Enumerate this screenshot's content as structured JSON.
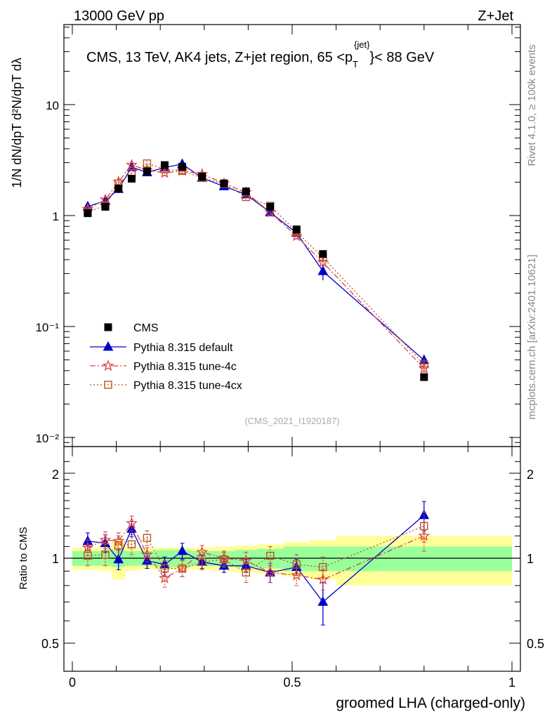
{
  "header": {
    "left": "13000 GeV pp",
    "right": "Z+Jet"
  },
  "side_text": {
    "rivet": "Rivet 4.1.0, ≥ 100k events",
    "mcplots": "mcplots.cern.ch [arXiv:2401.10621]"
  },
  "main_panel": {
    "title": "CMS, 13 TeV, AK4 jets, Z+jet region, 65 <p",
    "title_sup": "{jet}",
    "title_sub": "T",
    "title_end": "}< 88 GeV",
    "watermark": "(CMS_2021_I1920187)",
    "ylabel": "1/N dN/dpT d²N/dpT dλ",
    "ytick_labels": [
      "10⁻²",
      "10⁻¹",
      "1",
      "10"
    ]
  },
  "ratio_panel": {
    "ylabel": "Ratio to CMS",
    "ytick_labels": [
      "0.5",
      "1",
      "2"
    ],
    "ytick_labels_right": [
      "0.5",
      "1",
      "2"
    ]
  },
  "x_axis": {
    "label": "groomed LHA (charged-only)",
    "tick_labels": [
      "0",
      "0.5",
      "1"
    ]
  },
  "legend": [
    {
      "label": "CMS",
      "color": "#000000",
      "marker": "square-filled"
    },
    {
      "label": "Pythia 8.315 default",
      "color": "#0000cc",
      "marker": "triangle-filled"
    },
    {
      "label": "Pythia 8.315 tune-4c",
      "color": "#dd4444",
      "marker": "star"
    },
    {
      "label": "Pythia 8.315 tune-4cx",
      "color": "#bb5522",
      "marker": "square-open"
    }
  ],
  "colors": {
    "band_inner": "#99ff99",
    "band_outer": "#ffff99",
    "default": "#0000cc",
    "tune4c": "#dd4444",
    "tune4cx": "#bb5522"
  },
  "chart_data": {
    "type": "scatter",
    "xlim": [
      0,
      1
    ],
    "main_ylim": [
      0.008,
      60
    ],
    "main_yscale": "log",
    "ratio_ylim": [
      0.4,
      2.4
    ],
    "ratio_yscale": "log",
    "x": [
      0.035,
      0.075,
      0.105,
      0.135,
      0.17,
      0.21,
      0.25,
      0.295,
      0.345,
      0.395,
      0.45,
      0.51,
      0.57,
      0.8
    ],
    "x_low": [
      0.0,
      0.06,
      0.09,
      0.12,
      0.15,
      0.19,
      0.23,
      0.27,
      0.32,
      0.37,
      0.42,
      0.48,
      0.54,
      0.6
    ],
    "x_high": [
      0.06,
      0.09,
      0.12,
      0.15,
      0.19,
      0.23,
      0.27,
      0.32,
      0.37,
      0.42,
      0.48,
      0.54,
      0.6,
      1.0
    ],
    "cms": [
      1.05,
      1.2,
      1.75,
      2.15,
      2.5,
      2.85,
      2.75,
      2.25,
      1.95,
      1.65,
      1.2,
      0.75,
      0.45,
      0.035
    ],
    "band_inner": [
      0.06,
      0.06,
      0.07,
      0.06,
      0.06,
      0.07,
      0.07,
      0.06,
      0.06,
      0.07,
      0.08,
      0.1,
      0.1,
      0.1
    ],
    "band_outer": [
      0.09,
      0.1,
      0.16,
      0.1,
      0.09,
      0.09,
      0.09,
      0.09,
      0.1,
      0.11,
      0.12,
      0.14,
      0.16,
      0.2
    ],
    "series": [
      {
        "name": "Pythia 8.315 default",
        "key": "default",
        "ratio": [
          1.15,
          1.13,
          0.99,
          1.27,
          0.98,
          0.95,
          1.06,
          0.97,
          0.94,
          0.94,
          0.89,
          0.93,
          0.7,
          1.42
        ],
        "ratio_err": [
          0.08,
          0.08,
          0.08,
          0.08,
          0.06,
          0.06,
          0.07,
          0.05,
          0.05,
          0.05,
          0.07,
          0.06,
          0.12,
          0.17
        ]
      },
      {
        "name": "Pythia 8.315 tune-4c",
        "key": "tune4c",
        "ratio": [
          1.09,
          1.16,
          1.15,
          1.33,
          1.03,
          0.85,
          0.92,
          1.05,
          1.0,
          0.98,
          0.89,
          0.87,
          0.84,
          1.2
        ],
        "ratio_err": [
          0.07,
          0.08,
          0.08,
          0.08,
          0.06,
          0.06,
          0.06,
          0.06,
          0.06,
          0.07,
          0.07,
          0.07,
          0.07,
          0.14
        ]
      },
      {
        "name": "Pythia 8.315 tune-4cx",
        "key": "tune4cx",
        "ratio": [
          1.02,
          1.03,
          1.11,
          1.12,
          1.18,
          0.92,
          0.92,
          0.97,
          0.99,
          0.89,
          1.02,
          0.95,
          0.93,
          1.3
        ],
        "ratio_err": [
          0.08,
          0.09,
          0.09,
          0.09,
          0.07,
          0.06,
          0.06,
          0.06,
          0.06,
          0.07,
          0.08,
          0.08,
          0.08,
          0.16
        ]
      }
    ]
  }
}
